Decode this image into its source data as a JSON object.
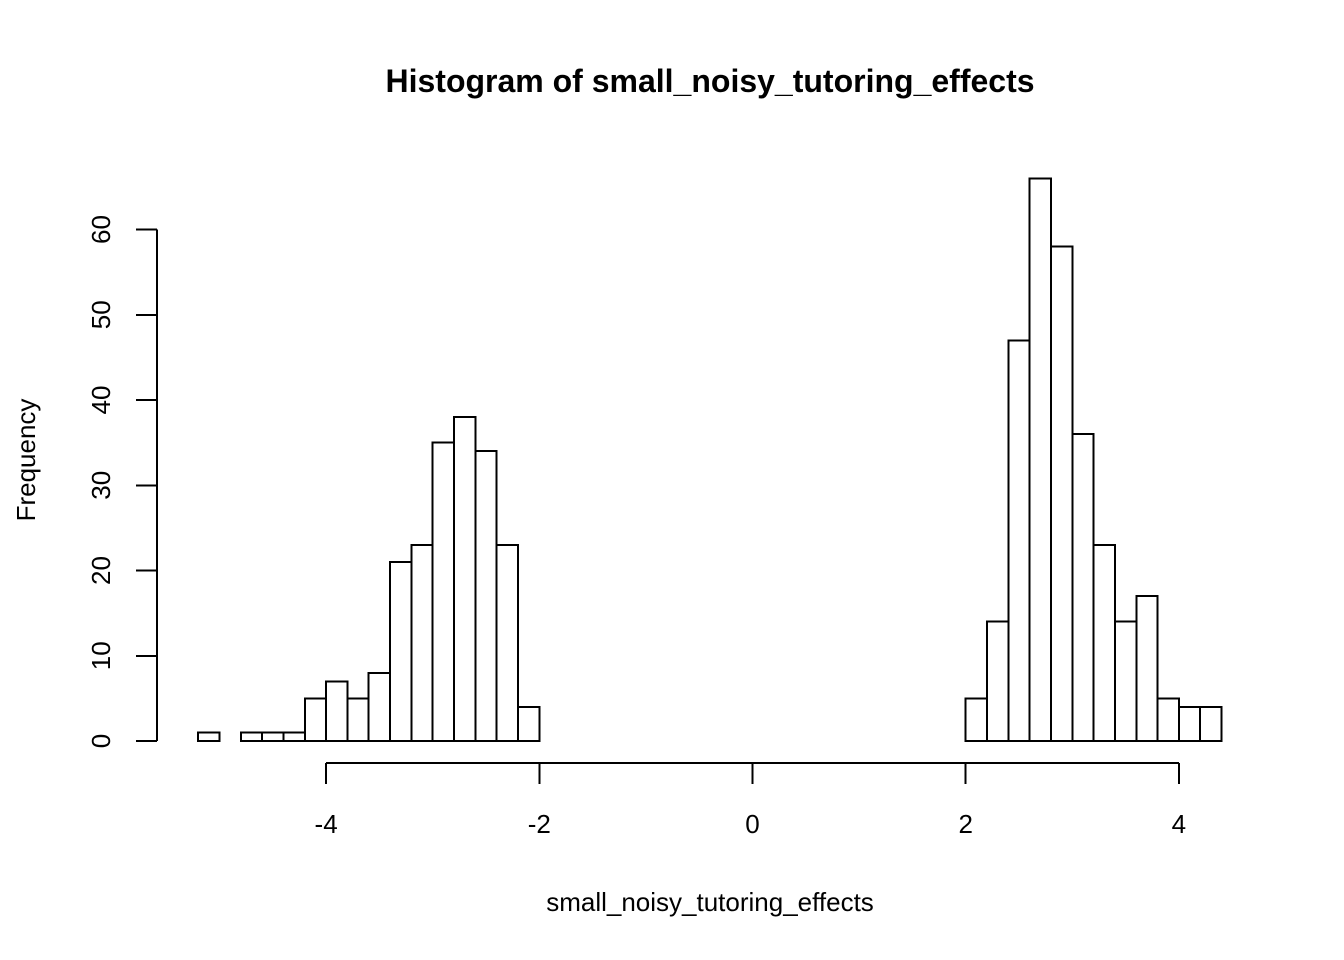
{
  "chart_data": {
    "type": "bar",
    "title": "Histogram of small_noisy_tutoring_effects",
    "xlabel": "small_noisy_tutoring_effects",
    "ylabel": "Frequency",
    "bin_width": 0.2,
    "xlim": [
      -5.2,
      4.4
    ],
    "ylim": [
      0,
      66
    ],
    "x_ticks": [
      -4,
      -2,
      0,
      2,
      4
    ],
    "x_tick_labels": [
      "-4",
      "-2",
      "0",
      "2",
      "4"
    ],
    "y_ticks": [
      0,
      10,
      20,
      30,
      40,
      50,
      60
    ],
    "y_tick_labels": [
      "0",
      "10",
      "20",
      "30",
      "40",
      "50",
      "60"
    ],
    "grid": false,
    "legend": "none",
    "bins": [
      {
        "start": -5.2,
        "end": -5.0,
        "count": 1
      },
      {
        "start": -5.0,
        "end": -4.8,
        "count": 0
      },
      {
        "start": -4.8,
        "end": -4.6,
        "count": 1
      },
      {
        "start": -4.6,
        "end": -4.4,
        "count": 1
      },
      {
        "start": -4.4,
        "end": -4.2,
        "count": 1
      },
      {
        "start": -4.2,
        "end": -4.0,
        "count": 5
      },
      {
        "start": -4.0,
        "end": -3.8,
        "count": 7
      },
      {
        "start": -3.8,
        "end": -3.6,
        "count": 5
      },
      {
        "start": -3.6,
        "end": -3.4,
        "count": 8
      },
      {
        "start": -3.4,
        "end": -3.2,
        "count": 21
      },
      {
        "start": -3.2,
        "end": -3.0,
        "count": 23
      },
      {
        "start": -3.0,
        "end": -2.8,
        "count": 35
      },
      {
        "start": -2.8,
        "end": -2.6,
        "count": 38
      },
      {
        "start": -2.6,
        "end": -2.4,
        "count": 34
      },
      {
        "start": -2.4,
        "end": -2.2,
        "count": 23
      },
      {
        "start": -2.2,
        "end": -2.0,
        "count": 4
      },
      {
        "start": -2.0,
        "end": -1.8,
        "count": 0
      },
      {
        "start": -1.8,
        "end": -1.6,
        "count": 0
      },
      {
        "start": -1.6,
        "end": -1.4,
        "count": 0
      },
      {
        "start": -1.4,
        "end": -1.2,
        "count": 0
      },
      {
        "start": -1.2,
        "end": -1.0,
        "count": 0
      },
      {
        "start": -1.0,
        "end": -0.8,
        "count": 0
      },
      {
        "start": -0.8,
        "end": -0.6,
        "count": 0
      },
      {
        "start": -0.6,
        "end": -0.4,
        "count": 0
      },
      {
        "start": -0.4,
        "end": -0.2,
        "count": 0
      },
      {
        "start": -0.2,
        "end": 0.0,
        "count": 0
      },
      {
        "start": 0.0,
        "end": 0.2,
        "count": 0
      },
      {
        "start": 0.2,
        "end": 0.4,
        "count": 0
      },
      {
        "start": 0.4,
        "end": 0.6,
        "count": 0
      },
      {
        "start": 0.6,
        "end": 0.8,
        "count": 0
      },
      {
        "start": 0.8,
        "end": 1.0,
        "count": 0
      },
      {
        "start": 1.0,
        "end": 1.2,
        "count": 0
      },
      {
        "start": 1.2,
        "end": 1.4,
        "count": 0
      },
      {
        "start": 1.4,
        "end": 1.6,
        "count": 0
      },
      {
        "start": 1.6,
        "end": 1.8,
        "count": 0
      },
      {
        "start": 1.8,
        "end": 2.0,
        "count": 0
      },
      {
        "start": 2.0,
        "end": 2.2,
        "count": 5
      },
      {
        "start": 2.2,
        "end": 2.4,
        "count": 14
      },
      {
        "start": 2.4,
        "end": 2.6,
        "count": 47
      },
      {
        "start": 2.6,
        "end": 2.8,
        "count": 66
      },
      {
        "start": 2.8,
        "end": 3.0,
        "count": 58
      },
      {
        "start": 3.0,
        "end": 3.2,
        "count": 36
      },
      {
        "start": 3.2,
        "end": 3.4,
        "count": 23
      },
      {
        "start": 3.4,
        "end": 3.6,
        "count": 14
      },
      {
        "start": 3.6,
        "end": 3.8,
        "count": 17
      },
      {
        "start": 3.8,
        "end": 4.0,
        "count": 5
      },
      {
        "start": 4.0,
        "end": 4.2,
        "count": 4
      },
      {
        "start": 4.2,
        "end": 4.4,
        "count": 4
      }
    ]
  }
}
